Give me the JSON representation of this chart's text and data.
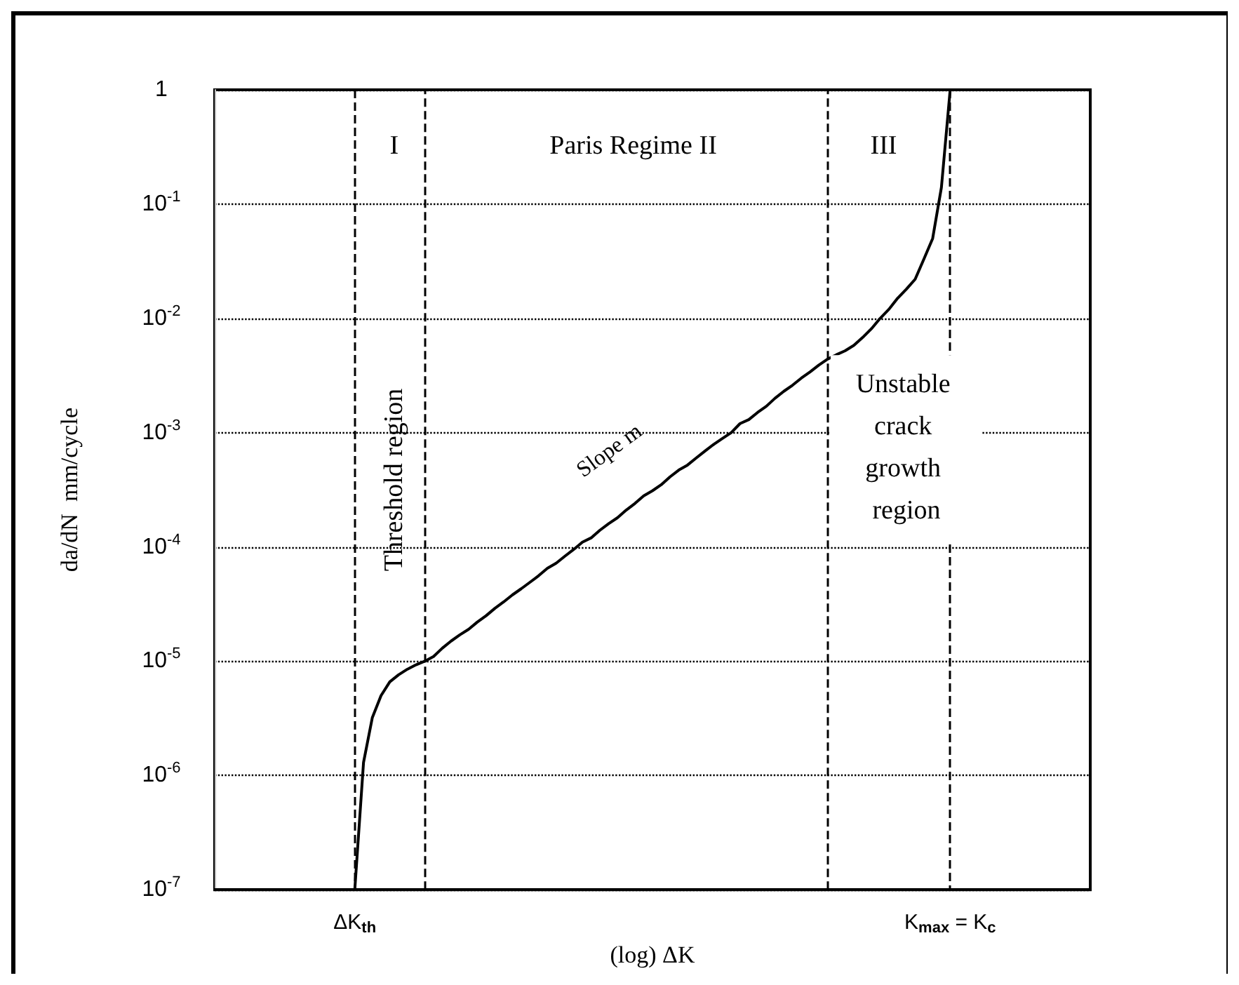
{
  "chart_data": {
    "type": "line",
    "xlabel": "(log) ΔK",
    "ylabel": "da/dN  mm/cycle",
    "categories": [
      null,
      null,
      null,
      null,
      null,
      null,
      null,
      null,
      null,
      null,
      null,
      null,
      null,
      null,
      null,
      null,
      "ΔK$_{th}$",
      null,
      null,
      null,
      null,
      null,
      null,
      null,
      null,
      null,
      null,
      null,
      null,
      null,
      null,
      null,
      null,
      null,
      null,
      null,
      null,
      null,
      null,
      null,
      null,
      null,
      null,
      null,
      null,
      null,
      null,
      null,
      null,
      null,
      null,
      null,
      null,
      null,
      null,
      null,
      null,
      null,
      null,
      null,
      null,
      null,
      null,
      null,
      null,
      null,
      null,
      null,
      null,
      null,
      null,
      null,
      null,
      null,
      null,
      null,
      null,
      null,
      null,
      null,
      null,
      null,
      null,
      null,
      "K$_{max}$ = K$_{c}$",
      null,
      null,
      null,
      null,
      null,
      null,
      null,
      null,
      null,
      null,
      null,
      null,
      null,
      null,
      null,
      null
    ],
    "values": [
      null,
      null,
      null,
      null,
      null,
      null,
      null,
      null,
      null,
      null,
      null,
      null,
      null,
      null,
      null,
      null,
      1e-07,
      1.3e-06,
      3.2e-06,
      5e-06,
      6.6e-06,
      7.6e-06,
      8.5e-06,
      9.3e-06,
      1e-05,
      1.1e-05,
      1.3e-05,
      1.5e-05,
      1.7e-05,
      1.9e-05,
      2.2e-05,
      2.5e-05,
      2.9e-05,
      3.3e-05,
      3.8e-05,
      4.3e-05,
      4.9e-05,
      5.6e-05,
      6.5e-05,
      7.2e-05,
      8.3e-05,
      9.5e-05,
      0.00011,
      0.00012,
      0.00014,
      0.00016,
      0.00018,
      0.00021,
      0.00024,
      0.00028,
      0.00031,
      0.00035,
      0.00041,
      0.00047,
      0.00052,
      0.0006,
      0.00069,
      0.00079,
      0.00089,
      0.001,
      0.0012,
      0.0013,
      0.0015,
      0.0017,
      0.002,
      0.0023,
      0.0026,
      0.003,
      0.0034,
      0.0039,
      0.0044,
      0.0048,
      0.0052,
      0.0058,
      0.0068,
      0.0081,
      0.01,
      0.012,
      0.015,
      0.018,
      0.022,
      0.033,
      0.05,
      0.14,
      1,
      null,
      null,
      null,
      null,
      null,
      null,
      null,
      null,
      null,
      null,
      null,
      null,
      null,
      null,
      null,
      null
    ],
    "color": "#000000",
    "log": "y",
    "ylim": [
      1e-07,
      1
    ],
    "yticks": [
      {
        "value": 1e-07,
        "label": "10$^{-7}$"
      },
      {
        "value": 1e-06,
        "label": "10$^{-6}$"
      },
      {
        "value": 1e-05,
        "label": "10$^{-5}$"
      },
      {
        "value": 0.0001,
        "label": "10$^{-4}$"
      },
      {
        "value": 0.001,
        "label": "10$^{-3}$"
      },
      {
        "value": 0.01,
        "label": "10$^{-2}$"
      },
      {
        "value": 0.1,
        "label": "10$^{-1}$"
      },
      {
        "value": 1,
        "label": "1"
      }
    ],
    "grid": true,
    "marker": "none",
    "line_style": "solid",
    "annotations": [
      "I",
      "Paris Regime II",
      "III",
      "Threshold region",
      "Slope m",
      "Unstable crack growth region"
    ]
  }
}
